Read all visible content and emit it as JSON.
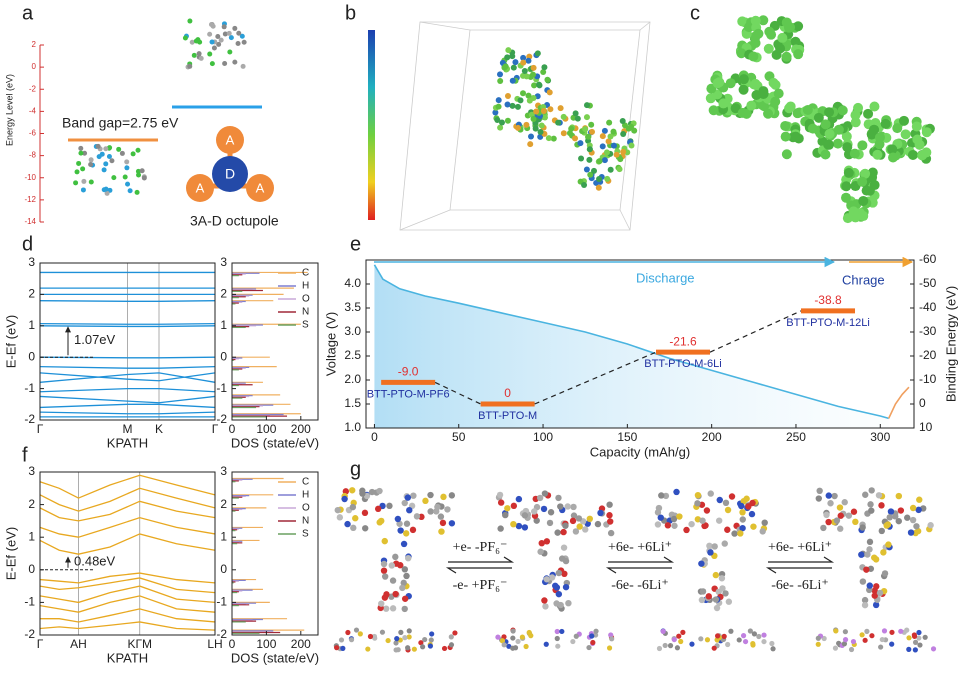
{
  "panel_labels": [
    "a",
    "b",
    "c",
    "d",
    "e",
    "f",
    "g"
  ],
  "panel_a": {
    "axis_label": "Energy Level (eV)",
    "ticks": [
      2,
      0,
      -2,
      -4,
      -6,
      -8,
      -10,
      -12,
      -14
    ],
    "lim": [
      2,
      -14
    ],
    "band_gap": "Band gap=2.75 eV",
    "acceptor": "A",
    "donor": "D",
    "caption": "3A-D octupole"
  },
  "panel_g": {
    "step1_forward": "+e- -PF₆⁻",
    "step1_back": "-e- +PF₆⁻",
    "step2_forward": "+6e- +6Li⁺",
    "step2_back": "-6e- -6Li⁺",
    "step3_forward": "+6e- +6Li⁺",
    "step3_back": "-6e- -6Li⁺"
  },
  "chart_data": [
    {
      "type": "band",
      "ylabel": "E-Ef (eV)",
      "xlabel": "KPATH",
      "color": "#1e90d8",
      "annotation": "1.07eV",
      "x": [
        0,
        0.5,
        0.68,
        1
      ],
      "xlim": [
        0,
        1
      ],
      "xticks": [
        {
          "value": 0,
          "label": "Γ"
        },
        {
          "value": 0.5,
          "label": "M"
        },
        {
          "value": 0.68,
          "label": "K"
        },
        {
          "value": 1,
          "label": "Γ"
        }
      ],
      "ylim": [
        -2,
        3
      ],
      "yticks": [
        -2,
        -1,
        0,
        1,
        2,
        3
      ],
      "series": [
        {
          "values": [
            2.7,
            2.7,
            2.7,
            2.7
          ]
        },
        {
          "values": [
            2.2,
            2.2,
            2.2,
            2.2
          ]
        },
        {
          "values": [
            2.0,
            2.0,
            2.0,
            2.0
          ]
        },
        {
          "values": [
            1.8,
            1.78,
            1.78,
            1.8
          ]
        },
        {
          "values": [
            1.07,
            1.05,
            1.05,
            1.07
          ]
        },
        {
          "values": [
            1.0,
            0.98,
            0.98,
            1.0
          ]
        },
        {
          "values": [
            0.0,
            -0.02,
            -0.02,
            0.0
          ]
        },
        {
          "values": [
            -0.3,
            -0.35,
            -0.35,
            -0.3
          ]
        },
        {
          "values": [
            -0.5,
            -0.7,
            -0.75,
            -0.5
          ]
        },
        {
          "values": [
            -0.8,
            -0.55,
            -0.5,
            -0.8
          ]
        },
        {
          "values": [
            -1.1,
            -1.0,
            -1.0,
            -1.1
          ]
        },
        {
          "values": [
            -1.25,
            -1.4,
            -1.45,
            -1.25
          ]
        },
        {
          "values": [
            -1.6,
            -1.5,
            -1.5,
            -1.6
          ]
        },
        {
          "values": [
            -1.75,
            -1.8,
            -1.8,
            -1.75
          ]
        },
        {
          "values": [
            -1.9,
            -1.9,
            -1.9,
            -1.9
          ]
        }
      ]
    },
    {
      "type": "dos",
      "xlabel": "DOS (state/eV)",
      "xlim": [
        0,
        250
      ],
      "xticks": [
        0,
        100,
        200
      ],
      "ylim": [
        -2,
        3
      ],
      "yticks": [
        -2,
        -1,
        0,
        1,
        2,
        3
      ],
      "y": [
        2.7,
        2.2,
        2.0,
        1.8,
        1.05,
        0.0,
        -0.3,
        -0.8,
        -1.2,
        -1.5,
        -1.8
      ],
      "series": [
        {
          "name": "C",
          "color": "#f0b060",
          "values": [
            220,
            180,
            150,
            120,
            200,
            110,
            130,
            90,
            140,
            170,
            200
          ]
        },
        {
          "name": "H",
          "color": "#7f7fd0",
          "values": [
            80,
            70,
            60,
            40,
            90,
            30,
            50,
            40,
            60,
            120,
            150
          ]
        },
        {
          "name": "O",
          "color": "#c8a8d8",
          "values": [
            40,
            60,
            50,
            30,
            70,
            20,
            40,
            30,
            50,
            90,
            110
          ]
        },
        {
          "name": "N",
          "color": "#a02838",
          "values": [
            30,
            90,
            40,
            20,
            50,
            10,
            30,
            60,
            40,
            80,
            160
          ]
        },
        {
          "name": "S",
          "color": "#6aa060",
          "values": [
            20,
            30,
            20,
            10,
            40,
            5,
            20,
            20,
            30,
            70,
            100
          ]
        }
      ]
    },
    {
      "type": "band",
      "ylabel": "E-Ef (eV)",
      "xlabel": "KPATH",
      "color": "#e8a820",
      "annotation": "0.48eV",
      "x": [
        0,
        0.11,
        0.22,
        0.4,
        0.57,
        0.78,
        1
      ],
      "xlim": [
        0,
        1
      ],
      "xticks": [
        {
          "value": 0,
          "label": "Γ"
        },
        {
          "value": 0.22,
          "label": "AH"
        },
        {
          "value": 0.57,
          "label": "KΓM"
        },
        {
          "value": 1,
          "label": "LH"
        }
      ],
      "ylim": [
        -2,
        3
      ],
      "yticks": [
        -2,
        -1,
        0,
        1,
        2,
        3
      ],
      "series": [
        {
          "values": [
            2.7,
            2.5,
            2.2,
            2.6,
            2.9,
            2.6,
            2.3
          ]
        },
        {
          "values": [
            2.3,
            2.0,
            1.8,
            2.1,
            2.5,
            2.2,
            1.9
          ]
        },
        {
          "values": [
            1.9,
            1.6,
            1.5,
            1.7,
            2.1,
            1.8,
            1.6
          ]
        },
        {
          "values": [
            1.3,
            1.1,
            1.0,
            1.3,
            1.6,
            1.3,
            1.1
          ]
        },
        {
          "values": [
            0.9,
            0.6,
            0.48,
            0.7,
            1.1,
            0.8,
            0.6
          ]
        },
        {
          "values": [
            -0.3,
            -0.35,
            -0.4,
            -0.2,
            -0.1,
            -0.3,
            -0.4
          ]
        },
        {
          "values": [
            -0.5,
            -0.6,
            -0.55,
            -0.4,
            -0.25,
            -0.6,
            -0.7
          ]
        },
        {
          "values": [
            -0.8,
            -0.9,
            -1.0,
            -0.7,
            -0.5,
            -0.9,
            -1.0
          ]
        },
        {
          "values": [
            -1.1,
            -1.2,
            -1.3,
            -1.0,
            -0.8,
            -1.2,
            -1.3
          ]
        },
        {
          "values": [
            -1.5,
            -1.5,
            -1.6,
            -1.4,
            -1.2,
            -1.5,
            -1.6
          ]
        },
        {
          "values": [
            -1.8,
            -1.75,
            -1.8,
            -1.7,
            -1.6,
            -1.8,
            -1.85
          ]
        }
      ]
    },
    {
      "type": "dos",
      "xlabel": "DOS (state/eV)",
      "xlim": [
        0,
        250
      ],
      "xticks": [
        0,
        100,
        200
      ],
      "ylim": [
        -2,
        3
      ],
      "yticks": [
        -2,
        -1,
        0,
        1,
        2,
        3
      ],
      "y": [
        2.8,
        2.3,
        1.9,
        1.3,
        0.9,
        -0.3,
        -0.6,
        -1.0,
        -1.5,
        -1.85
      ],
      "series": [
        {
          "name": "C",
          "color": "#f0b060",
          "values": [
            150,
            120,
            100,
            90,
            80,
            70,
            90,
            110,
            160,
            210
          ]
        },
        {
          "name": "H",
          "color": "#7f7fd0",
          "values": [
            60,
            50,
            40,
            30,
            30,
            40,
            60,
            70,
            90,
            120
          ]
        },
        {
          "name": "O",
          "color": "#c8a8d8",
          "values": [
            30,
            40,
            30,
            20,
            20,
            20,
            30,
            40,
            60,
            100
          ]
        },
        {
          "name": "N",
          "color": "#a02838",
          "values": [
            20,
            30,
            20,
            15,
            30,
            10,
            20,
            50,
            70,
            140
          ]
        },
        {
          "name": "S",
          "color": "#6aa060",
          "values": [
            10,
            20,
            10,
            10,
            15,
            5,
            15,
            20,
            40,
            80
          ]
        }
      ]
    },
    {
      "type": "line",
      "xlabel": "Capacity (mAh/g)",
      "ylabel": "Voltage (V)",
      "y2label": "Binding Energy (eV)",
      "xlim": [
        -5,
        320
      ],
      "xticks": [
        0,
        50,
        100,
        150,
        200,
        250,
        300
      ],
      "ylim": [
        1.0,
        4.5
      ],
      "yticks": [
        {
          "value": 1.0,
          "label": "1.0"
        },
        1.5,
        {
          "value": 2.0,
          "label": "2.0"
        },
        2.5,
        {
          "value": 3.0,
          "label": "3.0"
        },
        3.5,
        {
          "value": 4.0,
          "label": "4.0"
        }
      ],
      "y2lim": [
        10,
        -60
      ],
      "y2ticks": [
        10,
        0,
        -10,
        -20,
        -30,
        -40,
        -50,
        -60
      ],
      "annotations": [
        "Discharge",
        "Chrage"
      ],
      "series": [
        {
          "color": "#4ab4e0",
          "x": [
            0,
            5,
            15,
            30,
            50,
            75,
            100,
            125,
            150,
            175,
            200,
            225,
            250,
            275,
            300,
            305
          ],
          "values": [
            4.4,
            4.1,
            3.9,
            3.75,
            3.6,
            3.4,
            3.2,
            3.0,
            2.75,
            2.45,
            2.2,
            1.95,
            1.7,
            1.45,
            1.25,
            1.2
          ]
        },
        {
          "color": "#f0a060",
          "x": [
            305,
            309,
            313,
            317
          ],
          "values": [
            1.2,
            1.5,
            1.7,
            1.85
          ]
        }
      ],
      "levels": {
        "axis": "y2",
        "color": "#f07020",
        "labels": [
          "BTT-PTO-M-PF6",
          "BTT-PTO-M",
          "BTT-PTO-M-6Li",
          "BTT-PTO-M-12Li"
        ],
        "x": [
          20,
          79,
          183,
          269
        ],
        "values": [
          -9.0,
          0,
          -21.6,
          -38.8
        ],
        "value_labels": [
          "-9.0",
          "0",
          "-21.6",
          "-38.8"
        ]
      }
    }
  ]
}
